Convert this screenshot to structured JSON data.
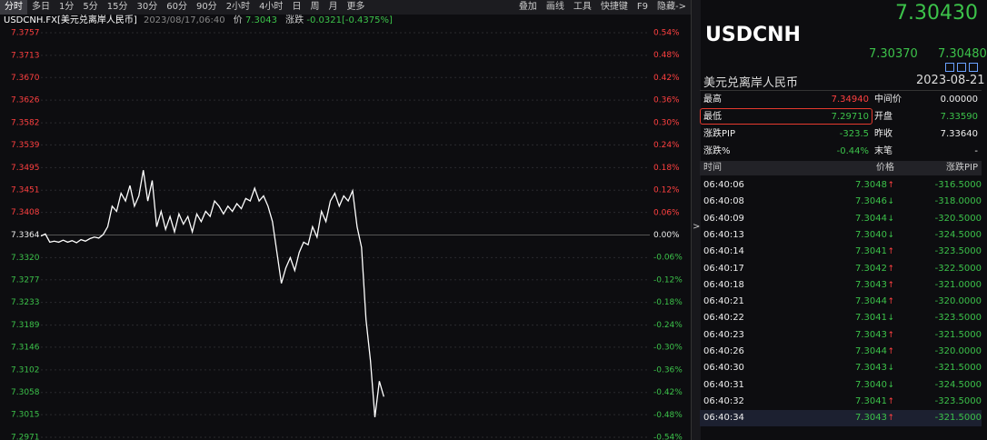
{
  "toolbar": {
    "periods": [
      "分时",
      "多日",
      "1分",
      "5分",
      "15分",
      "30分",
      "60分",
      "90分",
      "2小时",
      "4小时",
      "日",
      "周",
      "月",
      "更多"
    ],
    "tools": [
      "叠加",
      "画线",
      "工具",
      "快捷键",
      "F9",
      "隐藏->"
    ]
  },
  "info": {
    "symbol": "USDCNH.FX[美元兑离岸人民币]",
    "time": "2023/08/17,06:40",
    "price_label": "价",
    "price": "7.3043",
    "change_label": "涨跌",
    "change": "-0.0321[-0.4375%]"
  },
  "chart_data": {
    "type": "line",
    "ylim": [
      7.2971,
      7.3757
    ],
    "yticks": [
      7.3757,
      7.3713,
      {
        "value": 7.367,
        "label": "7.3670"
      },
      7.3626,
      7.3582,
      7.3539,
      7.3495,
      7.3451,
      7.3408,
      7.3364,
      {
        "value": 7.332,
        "label": "7.3320"
      },
      7.3277,
      7.3233,
      7.3189,
      7.3146,
      7.3102,
      7.3058,
      7.3015,
      7.2971
    ],
    "y2lim": [
      -0.54,
      0.54
    ],
    "y2ticks": [
      {
        "value": 0.54,
        "label": "0.54%"
      },
      {
        "value": 0.48,
        "label": "0.48%"
      },
      {
        "value": 0.42,
        "label": "0.42%"
      },
      {
        "value": 0.36,
        "label": "0.36%"
      },
      {
        "value": 0.3,
        "label": "0.30%"
      },
      {
        "value": 0.24,
        "label": "0.24%"
      },
      {
        "value": 0.18,
        "label": "0.18%"
      },
      {
        "value": 0.12,
        "label": "0.12%"
      },
      {
        "value": 0.06,
        "label": "0.06%"
      },
      {
        "value": 0,
        "label": "0.00%"
      },
      {
        "value": -0.06,
        "label": "-0.06%"
      },
      {
        "value": -0.12,
        "label": "-0.12%"
      },
      {
        "value": -0.18,
        "label": "-0.18%"
      },
      {
        "value": -0.24,
        "label": "-0.24%"
      },
      {
        "value": -0.3,
        "label": "-0.30%"
      },
      {
        "value": -0.36,
        "label": "-0.36%"
      },
      {
        "value": -0.42,
        "label": "-0.42%"
      },
      {
        "value": -0.48,
        "label": "-0.48%"
      },
      {
        "value": -0.54,
        "label": "-0.54%"
      }
    ],
    "grid": true,
    "series": [
      {
        "color": "#ffffff",
        "values": [
          7.3362,
          7.3366,
          7.335,
          7.3352,
          7.335,
          7.3354,
          7.335,
          7.3353,
          7.3349,
          7.3355,
          7.3352,
          7.3357,
          7.336,
          7.3358,
          7.3365,
          7.338,
          7.342,
          7.341,
          7.3445,
          7.343,
          7.346,
          7.342,
          7.344,
          7.349,
          7.343,
          7.347,
          7.338,
          7.341,
          7.3375,
          7.34,
          7.337,
          7.3405,
          7.3385,
          7.34,
          7.337,
          7.3405,
          7.339,
          7.341,
          7.34,
          7.343,
          7.342,
          7.3405,
          7.342,
          7.341,
          7.3425,
          7.3415,
          7.3435,
          7.343,
          7.3455,
          7.343,
          7.344,
          7.342,
          7.339,
          7.333,
          7.327,
          7.33,
          7.332,
          7.3295,
          7.333,
          7.335,
          7.3345,
          7.338,
          7.336,
          7.341,
          7.339,
          7.343,
          7.3445,
          7.342,
          7.344,
          7.343,
          7.345,
          7.338,
          7.334,
          7.32,
          7.312,
          7.301,
          7.308,
          7.305
        ]
      }
    ]
  },
  "quote": {
    "last": "7.30430",
    "symbol": "USDCNH",
    "bid": "7.30370",
    "ask": "7.30480",
    "name": "美元兑离岸人民币",
    "date": "2023-08-21"
  },
  "stats": {
    "rows": [
      [
        "最高",
        "7.34940",
        "中间价",
        "0.00000"
      ],
      [
        "最低",
        "7.29710",
        "开盘",
        "7.33590"
      ],
      [
        "涨跌PIP",
        "-323.5",
        "昨收",
        "7.33640"
      ],
      [
        "涨跌%",
        "-0.44%",
        "末笔",
        "-"
      ]
    ]
  },
  "trades": {
    "header": [
      "时间",
      "价格",
      "涨跌PIP"
    ],
    "rows": [
      [
        "06:40:06",
        "7.3048",
        "↑",
        "-316.5000"
      ],
      [
        "06:40:08",
        "7.3046",
        "↓",
        "-318.0000"
      ],
      [
        "06:40:09",
        "7.3044",
        "↓",
        "-320.5000"
      ],
      [
        "06:40:13",
        "7.3040",
        "↓",
        "-324.5000"
      ],
      [
        "06:40:14",
        "7.3041",
        "↑",
        "-323.5000"
      ],
      [
        "06:40:17",
        "7.3042",
        "↑",
        "-322.5000"
      ],
      [
        "06:40:18",
        "7.3043",
        "↑",
        "-321.0000"
      ],
      [
        "06:40:21",
        "7.3044",
        "↑",
        "-320.0000"
      ],
      [
        "06:40:22",
        "7.3041",
        "↓",
        "-323.5000"
      ],
      [
        "06:40:23",
        "7.3043",
        "↑",
        "-321.5000"
      ],
      [
        "06:40:26",
        "7.3044",
        "↑",
        "-320.0000"
      ],
      [
        "06:40:30",
        "7.3043",
        "↓",
        "-321.5000"
      ],
      [
        "06:40:31",
        "7.3040",
        "↓",
        "-324.5000"
      ],
      [
        "06:40:32",
        "7.3041",
        "↑",
        "-323.5000"
      ],
      [
        "06:40:34",
        "7.3043",
        "↑",
        "-321.5000"
      ]
    ]
  }
}
